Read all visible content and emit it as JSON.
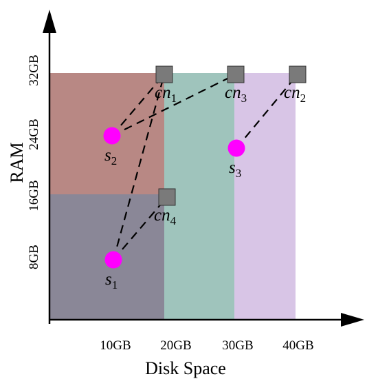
{
  "xlabel": "Disk Space",
  "ylabel": "RAM",
  "x_ticks": [
    "10GB",
    "20GB",
    "30GB",
    "40GB"
  ],
  "y_ticks": [
    "8GB",
    "16GB",
    "24GB",
    "32GB"
  ],
  "regions": [
    {
      "id": "r-left-top",
      "color": "#b88884"
    },
    {
      "id": "r-left-bottom",
      "color": "#8a8797"
    },
    {
      "id": "r-middle",
      "color": "#9fc4bc"
    },
    {
      "id": "r-right",
      "color": "#d8c5e6"
    }
  ],
  "nodes": {
    "cn1": {
      "base": "cn",
      "sub": "1"
    },
    "cn2": {
      "base": "cn",
      "sub": "2"
    },
    "cn3": {
      "base": "cn",
      "sub": "3"
    },
    "cn4": {
      "base": "cn",
      "sub": "4"
    },
    "s1": {
      "base": "s",
      "sub": "1"
    },
    "s2": {
      "base": "s",
      "sub": "2"
    },
    "s3": {
      "base": "s",
      "sub": "3"
    }
  },
  "links": [
    [
      "s1",
      "cn1"
    ],
    [
      "s1",
      "cn4"
    ],
    [
      "s2",
      "cn1"
    ],
    [
      "s2",
      "cn3"
    ],
    [
      "s3",
      "cn2"
    ]
  ],
  "colors": {
    "server": "#ff00ff",
    "compute_node": "#7a7a7a"
  }
}
